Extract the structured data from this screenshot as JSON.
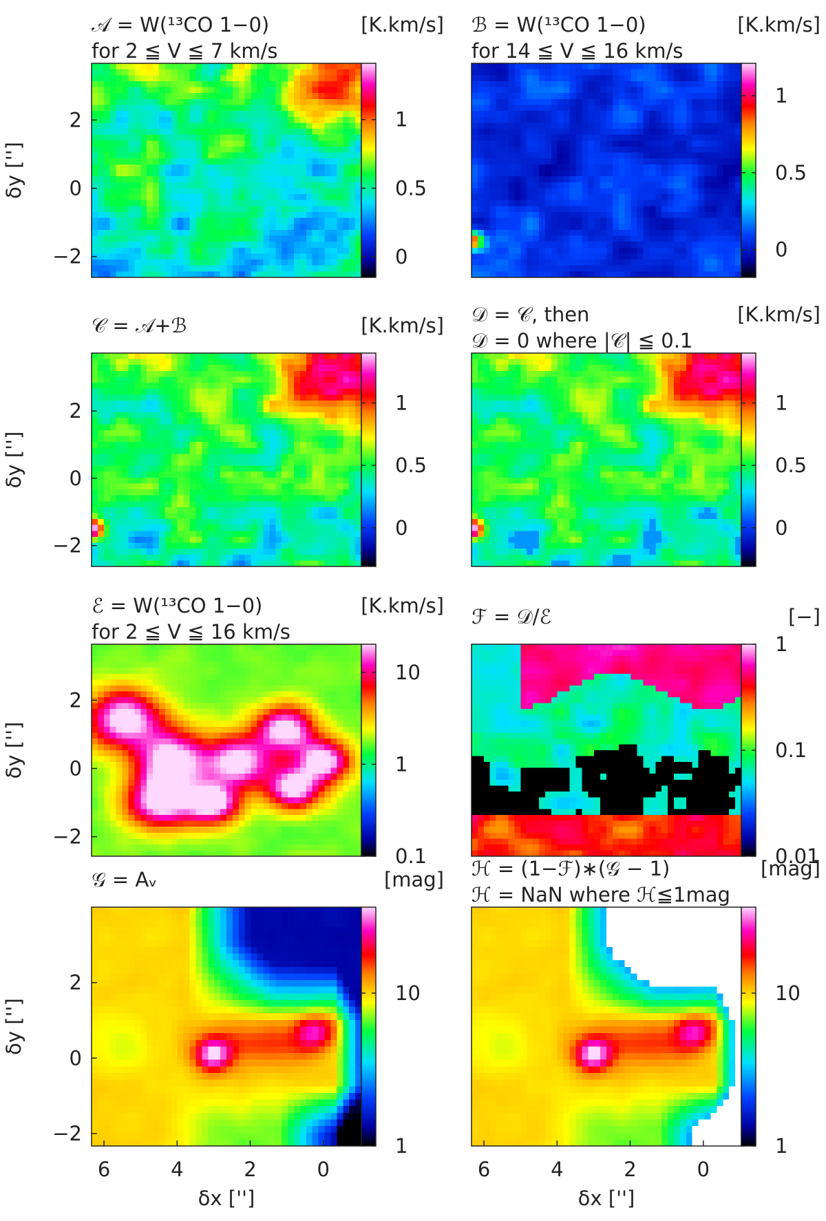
{
  "chart_data": [
    {
      "type": "heatmap",
      "title": [
        "𝒜 = W(¹³CO 1−0)",
        "for 2 ≦ V ≦ 7 km/s"
      ],
      "unit": "[K.km/s]",
      "xlim": [
        6.34,
        -1.04
      ],
      "ylim": [
        -2.61,
        3.66
      ],
      "yticks": [
        2,
        0,
        {
          "value": -2,
          "label": "−2"
        }
      ],
      "y_label": "δy ['']",
      "clim": [
        -0.15,
        1.41
      ],
      "cticks": [
        0,
        0.5,
        1
      ],
      "log_scale": false
    },
    {
      "type": "heatmap",
      "title": [
        "ℬ = W(¹³CO 1−0)",
        "for 14 ≦ V ≦ 16 km/s"
      ],
      "unit": "[K.km/s]",
      "xlim": [
        6.34,
        -1.04
      ],
      "ylim": [
        -2.61,
        3.66
      ],
      "clim": [
        -0.18,
        1.21
      ],
      "cticks": [
        0,
        0.5,
        1
      ],
      "log_scale": false
    },
    {
      "type": "heatmap",
      "title": [
        "𝒞 = 𝒜+ℬ"
      ],
      "unit": "[K.km/s]",
      "xlim": [
        6.34,
        -1.04
      ],
      "ylim": [
        -2.62,
        3.72
      ],
      "yticks": [
        2,
        0,
        {
          "value": -2,
          "label": "−2"
        }
      ],
      "y_label": "δy ['']",
      "clim": [
        -0.31,
        1.4
      ],
      "cticks": [
        0,
        0.5,
        1
      ],
      "log_scale": false
    },
    {
      "type": "heatmap",
      "title": [
        "𝒟 = 𝒞, then",
        "𝒟 = 0 where |𝒞| ≦ 0.1"
      ],
      "unit": "[K.km/s]",
      "xlim": [
        6.34,
        -1.04
      ],
      "ylim": [
        -2.62,
        3.72
      ],
      "clim": [
        -0.31,
        1.4
      ],
      "cticks": [
        0,
        0.5,
        1
      ],
      "log_scale": false
    },
    {
      "type": "heatmap",
      "title": [
        "ℰ = W(¹³CO 1−0)",
        "for 2 ≦ V ≦ 16 km/s"
      ],
      "unit": "[K.km/s]",
      "xlim": [
        6.34,
        -1.04
      ],
      "ylim": [
        -2.57,
        3.64
      ],
      "yticks": [
        2,
        0,
        {
          "value": -2,
          "label": "−2"
        }
      ],
      "y_label": "δy ['']",
      "clim": [
        0.1,
        20.2
      ],
      "cticks": [
        0.1,
        1,
        10
      ],
      "log_scale": true
    },
    {
      "type": "heatmap",
      "title": [
        "ℱ = 𝒟/ℰ"
      ],
      "unit": "[−]",
      "xlim": [
        6.34,
        -1.04
      ],
      "ylim": [
        -2.57,
        3.64
      ],
      "clim": [
        0.01,
        1
      ],
      "cticks": [
        0.01,
        0.1,
        1
      ],
      "log_scale": true
    },
    {
      "type": "heatmap",
      "title": [
        "𝒢 = Aᵥ"
      ],
      "unit": "[mag]",
      "xlim": [
        6.34,
        -1.04
      ],
      "ylim": [
        -2.33,
        4.0
      ],
      "xticks": [
        6,
        4,
        2,
        0
      ],
      "x_label": "δx ['']",
      "yticks": [
        2,
        0,
        {
          "value": -2,
          "label": "−2"
        }
      ],
      "y_label": "δy ['']",
      "clim": [
        1,
        36.5
      ],
      "cticks": [
        1,
        10
      ],
      "log_scale": true
    },
    {
      "type": "heatmap",
      "title": [
        "ℋ = (1−ℱ)∗(𝒢 − 1)",
        "ℋ = NaN where ℋ≦1mag"
      ],
      "unit": "[mag]",
      "xlim": [
        6.34,
        -1.04
      ],
      "ylim": [
        -2.33,
        4.0
      ],
      "xticks": [
        6,
        4,
        2,
        0
      ],
      "x_label": "δx ['']",
      "clim": [
        1,
        36.5
      ],
      "cticks": [
        1,
        10
      ],
      "log_scale": true
    }
  ]
}
